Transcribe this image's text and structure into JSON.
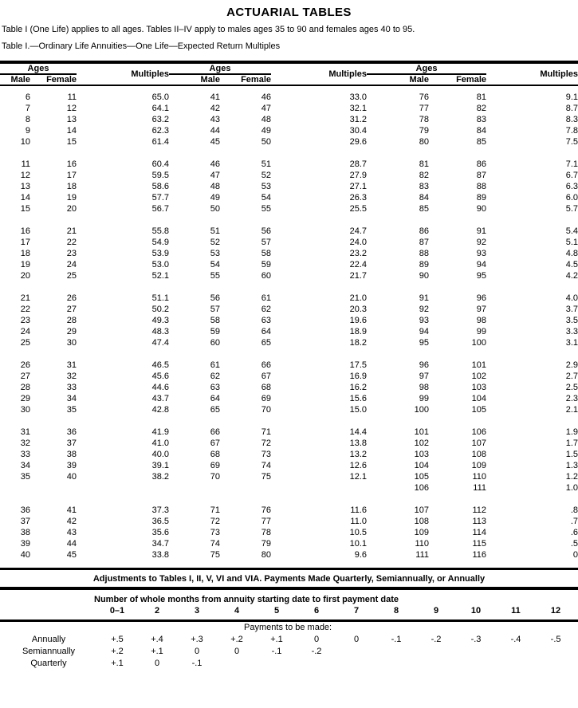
{
  "title": "ACTUARIAL TABLES",
  "intro": "Table I (One Life) applies to all ages. Tables II–IV apply to males ages 35 to 90 and females ages 40 to 95.",
  "table_title": "Table I.—Ordinary Life Annuities—One Life—Expected Return Multiples",
  "main_table": {
    "group_header": "Ages",
    "col_male": "Male",
    "col_female": "Female",
    "col_multiples": "Multiples",
    "blocks": [
      [
        [
          "6",
          "11",
          "65.0",
          "41",
          "46",
          "33.0",
          "76",
          "81",
          "9.1"
        ],
        [
          "7",
          "12",
          "64.1",
          "42",
          "47",
          "32.1",
          "77",
          "82",
          "8.7"
        ],
        [
          "8",
          "13",
          "63.2",
          "43",
          "48",
          "31.2",
          "78",
          "83",
          "8.3"
        ],
        [
          "9",
          "14",
          "62.3",
          "44",
          "49",
          "30.4",
          "79",
          "84",
          "7.8"
        ],
        [
          "10",
          "15",
          "61.4",
          "45",
          "50",
          "29.6",
          "80",
          "85",
          "7.5"
        ]
      ],
      [
        [
          "11",
          "16",
          "60.4",
          "46",
          "51",
          "28.7",
          "81",
          "86",
          "7.1"
        ],
        [
          "12",
          "17",
          "59.5",
          "47",
          "52",
          "27.9",
          "82",
          "87",
          "6.7"
        ],
        [
          "13",
          "18",
          "58.6",
          "48",
          "53",
          "27.1",
          "83",
          "88",
          "6.3"
        ],
        [
          "14",
          "19",
          "57.7",
          "49",
          "54",
          "26.3",
          "84",
          "89",
          "6.0"
        ],
        [
          "15",
          "20",
          "56.7",
          "50",
          "55",
          "25.5",
          "85",
          "90",
          "5.7"
        ]
      ],
      [
        [
          "16",
          "21",
          "55.8",
          "51",
          "56",
          "24.7",
          "86",
          "91",
          "5.4"
        ],
        [
          "17",
          "22",
          "54.9",
          "52",
          "57",
          "24.0",
          "87",
          "92",
          "5.1"
        ],
        [
          "18",
          "23",
          "53.9",
          "53",
          "58",
          "23.2",
          "88",
          "93",
          "4.8"
        ],
        [
          "19",
          "24",
          "53.0",
          "54",
          "59",
          "22.4",
          "89",
          "94",
          "4.5"
        ],
        [
          "20",
          "25",
          "52.1",
          "55",
          "60",
          "21.7",
          "90",
          "95",
          "4.2"
        ]
      ],
      [
        [
          "21",
          "26",
          "51.1",
          "56",
          "61",
          "21.0",
          "91",
          "96",
          "4.0"
        ],
        [
          "22",
          "27",
          "50.2",
          "57",
          "62",
          "20.3",
          "92",
          "97",
          "3.7"
        ],
        [
          "23",
          "28",
          "49.3",
          "58",
          "63",
          "19.6",
          "93",
          "98",
          "3.5"
        ],
        [
          "24",
          "29",
          "48.3",
          "59",
          "64",
          "18.9",
          "94",
          "99",
          "3.3"
        ],
        [
          "25",
          "30",
          "47.4",
          "60",
          "65",
          "18.2",
          "95",
          "100",
          "3.1"
        ]
      ],
      [
        [
          "26",
          "31",
          "46.5",
          "61",
          "66",
          "17.5",
          "96",
          "101",
          "2.9"
        ],
        [
          "27",
          "32",
          "45.6",
          "62",
          "67",
          "16.9",
          "97",
          "102",
          "2.7"
        ],
        [
          "28",
          "33",
          "44.6",
          "63",
          "68",
          "16.2",
          "98",
          "103",
          "2.5"
        ],
        [
          "29",
          "34",
          "43.7",
          "64",
          "69",
          "15.6",
          "99",
          "104",
          "2.3"
        ],
        [
          "30",
          "35",
          "42.8",
          "65",
          "70",
          "15.0",
          "100",
          "105",
          "2.1"
        ]
      ],
      [
        [
          "31",
          "36",
          "41.9",
          "66",
          "71",
          "14.4",
          "101",
          "106",
          "1.9"
        ],
        [
          "32",
          "37",
          "41.0",
          "67",
          "72",
          "13.8",
          "102",
          "107",
          "1.7"
        ],
        [
          "33",
          "38",
          "40.0",
          "68",
          "73",
          "13.2",
          "103",
          "108",
          "1.5"
        ],
        [
          "34",
          "39",
          "39.1",
          "69",
          "74",
          "12.6",
          "104",
          "109",
          "1.3"
        ],
        [
          "35",
          "40",
          "38.2",
          "70",
          "75",
          "12.1",
          "105",
          "110",
          "1.2"
        ],
        [
          "",
          "",
          "",
          "",
          "",
          "",
          "106",
          "111",
          "1.0"
        ]
      ],
      [
        [
          "36",
          "41",
          "37.3",
          "71",
          "76",
          "11.6",
          "107",
          "112",
          ".8"
        ],
        [
          "37",
          "42",
          "36.5",
          "72",
          "77",
          "11.0",
          "108",
          "113",
          ".7"
        ],
        [
          "38",
          "43",
          "35.6",
          "73",
          "78",
          "10.5",
          "109",
          "114",
          ".6"
        ],
        [
          "39",
          "44",
          "34.7",
          "74",
          "79",
          "10.1",
          "110",
          "115",
          ".5"
        ],
        [
          "40",
          "45",
          "33.8",
          "75",
          "80",
          "9.6",
          "111",
          "116",
          "0"
        ]
      ]
    ]
  },
  "adjustments": {
    "heading": "Adjustments to Tables I, II, V, VI and VIA. Payments Made Quarterly, Semiannually, or Annually",
    "months_heading": "Number of whole months from annuity starting date to first payment date",
    "month_cols": [
      "0–1",
      "2",
      "3",
      "4",
      "5",
      "6",
      "7",
      "8",
      "9",
      "10",
      "11",
      "12"
    ],
    "rows_label": "Payments to be made:",
    "rows": [
      {
        "label": "Annually",
        "values": [
          "+.5",
          "+.4",
          "+.3",
          "+.2",
          "+.1",
          "0",
          "0",
          "-.1",
          "-.2",
          "-.3",
          "-.4",
          "-.5"
        ]
      },
      {
        "label": "Semiannually",
        "values": [
          "+.2",
          "+.1",
          "0",
          "0",
          "-.1",
          "-.2",
          "",
          "",
          "",
          "",
          "",
          ""
        ]
      },
      {
        "label": "Quarterly",
        "values": [
          "+.1",
          "0",
          "-.1",
          "",
          "",
          "",
          "",
          "",
          "",
          "",
          "",
          ""
        ]
      }
    ]
  }
}
